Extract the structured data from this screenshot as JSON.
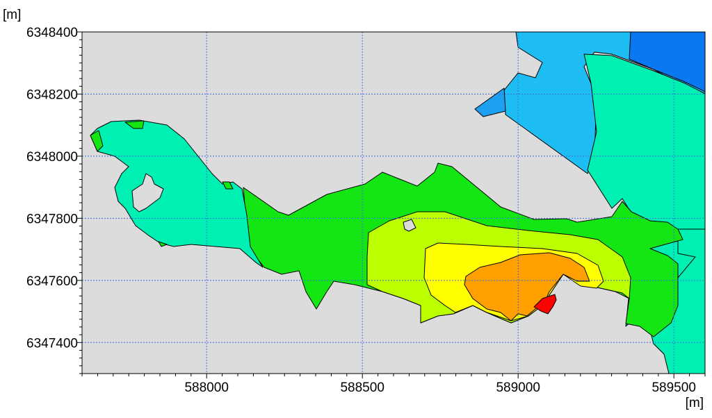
{
  "chart_data": {
    "type": "contour-map",
    "x_unit_label": "[m]",
    "y_unit_label": "[m]",
    "xlim": [
      587600,
      589600
    ],
    "ylim": [
      6347300,
      6348400
    ],
    "x_ticks": [
      588000,
      588500,
      589000,
      589500
    ],
    "y_ticks": [
      6347400,
      6347600,
      6347800,
      6348000,
      6348200,
      6348400
    ],
    "grid": true,
    "background_color": "#dcdcdc",
    "zone_colors": {
      "dark-blue": "#0a78f0",
      "blue": "#1ea0f0",
      "light-blue": "#1ebef5",
      "aqua": "#00f0b4",
      "green": "#14e614",
      "yellow-green": "#bcff00",
      "yellow": "#ffff00",
      "orange": "#ffa000",
      "red": "#ff0000"
    }
  }
}
